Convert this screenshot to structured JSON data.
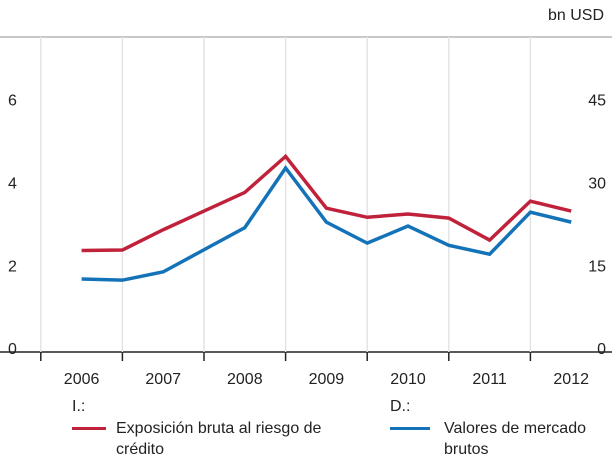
{
  "chart_data": {
    "type": "line",
    "unit_label": "bn USD",
    "x": [
      2006.5,
      2007,
      2007.5,
      2008,
      2008.5,
      2009,
      2009.5,
      2010,
      2010.5,
      2011,
      2011.5,
      2012,
      2012.5
    ],
    "xlim": [
      2005.5,
      2013
    ],
    "xticks": [
      {
        "value": 2006.5,
        "label": "2006"
      },
      {
        "value": 2007.5,
        "label": "2007"
      },
      {
        "value": 2008.5,
        "label": "2008"
      },
      {
        "value": 2009.5,
        "label": "2009"
      },
      {
        "value": 2010.5,
        "label": "2010"
      },
      {
        "value": 2011.5,
        "label": "2011"
      },
      {
        "value": 2012.5,
        "label": "2012"
      }
    ],
    "ylim": [
      0,
      7.6
    ],
    "yticks": [
      0,
      2,
      4,
      6
    ],
    "y2lim": [
      0,
      57
    ],
    "y2ticks": [
      0,
      15,
      30,
      45
    ],
    "grid": true,
    "series": [
      {
        "name": "Exposición bruta al riesgo de crédito",
        "legend_heading": "I.:",
        "color": "#c0223b",
        "axis": "y",
        "values": [
          2.45,
          2.46,
          2.95,
          3.4,
          3.85,
          4.72,
          3.47,
          3.25,
          3.33,
          3.23,
          2.7,
          3.64,
          3.4
        ]
      },
      {
        "name": "Valores de mercado brutos",
        "legend_heading": "D.:",
        "color": "#1473b8",
        "axis": "y2",
        "values": [
          13.2,
          13.0,
          14.5,
          18.5,
          22.5,
          33.3,
          23.5,
          19.7,
          22.8,
          19.3,
          17.7,
          25.3,
          23.5
        ]
      }
    ]
  }
}
